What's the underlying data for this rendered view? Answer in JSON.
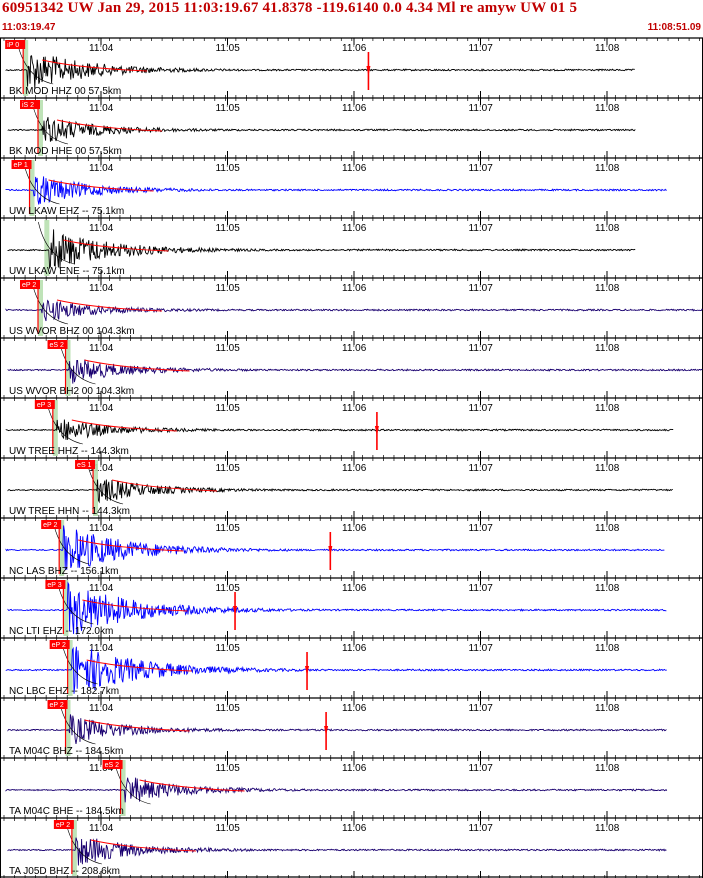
{
  "header": {
    "title": "60951342 UW Jan 29, 2015 11:03:19.67   41.8378 -119.6140  0.0 4.34 Ml re amyw UW 01   5",
    "start_time": "11:03:19.47",
    "end_time": "11:08:51.09"
  },
  "colors": {
    "header_text": "#c00000",
    "trace_black": "#000000",
    "trace_blue": "#0000ff",
    "trace_navy": "#1a0070",
    "pick_box": "#ff0000",
    "pick_line": "#ff0000",
    "predicted_band": "#b8e0b0",
    "moveout_curve": "#000000",
    "amp_marker": "#ff0000"
  },
  "chart_data": {
    "type": "line",
    "title": "60951342 UW Jan 29, 2015 11:03:19.67   41.8378 -119.6140  0.0 4.34 Ml re amyw UW 01   5",
    "x_range": [
      "11:03:19.47",
      "11:08:51.09"
    ],
    "x_tick_labels": [
      "11:04",
      "11:05",
      "11:06",
      "11:07",
      "11:08"
    ],
    "traces": [
      {
        "label": "BK MOD HHZ 00 57.5km",
        "color": "black",
        "pick": "iP 0",
        "onset_s": 10,
        "amp_level": 0.75,
        "end_s": 300,
        "marker_s": 174
      },
      {
        "label": "BK MOD HHE 00 57.5km",
        "color": "black",
        "pick": "iS 2",
        "onset_s": 17,
        "amp_level": 0.5,
        "end_s": 300,
        "marker_s": null
      },
      {
        "label": "UW LKAW EHZ -- 75.1km",
        "color": "blue",
        "pick": "eP 1",
        "onset_s": 13,
        "amp_level": 0.55,
        "end_s": 315,
        "marker_s": null
      },
      {
        "label": "UW LKAW ENE -- 75.1km",
        "color": "black",
        "pick": "",
        "onset_s": 20,
        "amp_level": 0.8,
        "end_s": 300,
        "marker_s": null
      },
      {
        "label": "US WVOR BHZ 00 104.3km",
        "color": "navy",
        "pick": "eP 2",
        "onset_s": 17,
        "amp_level": 0.4,
        "end_s": 332,
        "marker_s": null
      },
      {
        "label": "US WVOR BH2 00 104.3km",
        "color": "navy",
        "pick": "eS 2",
        "onset_s": 30,
        "amp_level": 0.45,
        "end_s": 332,
        "marker_s": null
      },
      {
        "label": "UW TREE HHZ -- 144.3km",
        "color": "black",
        "pick": "eP 3",
        "onset_s": 24,
        "amp_level": 0.4,
        "end_s": 318,
        "marker_s": 178
      },
      {
        "label": "UW TREE HHN -- 144.3km",
        "color": "black",
        "pick": "eS 1",
        "onset_s": 43,
        "amp_level": 0.45,
        "end_s": 318,
        "marker_s": null
      },
      {
        "label": "NC LAS BHZ -- 156.1km",
        "color": "blue",
        "pick": "eP 2",
        "onset_s": 27,
        "amp_level": 0.9,
        "end_s": 314,
        "marker_s": 156
      },
      {
        "label": "NC LTI EHZ -- 172.0km",
        "color": "blue",
        "pick": "eP 3",
        "onset_s": 29,
        "amp_level": 1.0,
        "end_s": 315,
        "marker_s": 111
      },
      {
        "label": "NC LBC EHZ -- 182.7km",
        "color": "blue",
        "pick": "eP 2",
        "onset_s": 31,
        "amp_level": 1.0,
        "end_s": 315,
        "marker_s": 145
      },
      {
        "label": "TA M04C BHZ -- 184.5km",
        "color": "navy",
        "pick": "eP 2",
        "onset_s": 30,
        "amp_level": 0.5,
        "end_s": 315,
        "marker_s": 154
      },
      {
        "label": "TA M04C BHE -- 184.5km",
        "color": "navy",
        "pick": "eS 2",
        "onset_s": 56,
        "amp_level": 0.5,
        "end_s": 315,
        "marker_s": null
      },
      {
        "label": "TA J05D BHZ -- 208.6km",
        "color": "navy",
        "pick": "eP 2",
        "onset_s": 33,
        "amp_level": 0.55,
        "end_s": 315,
        "marker_s": null
      }
    ]
  }
}
